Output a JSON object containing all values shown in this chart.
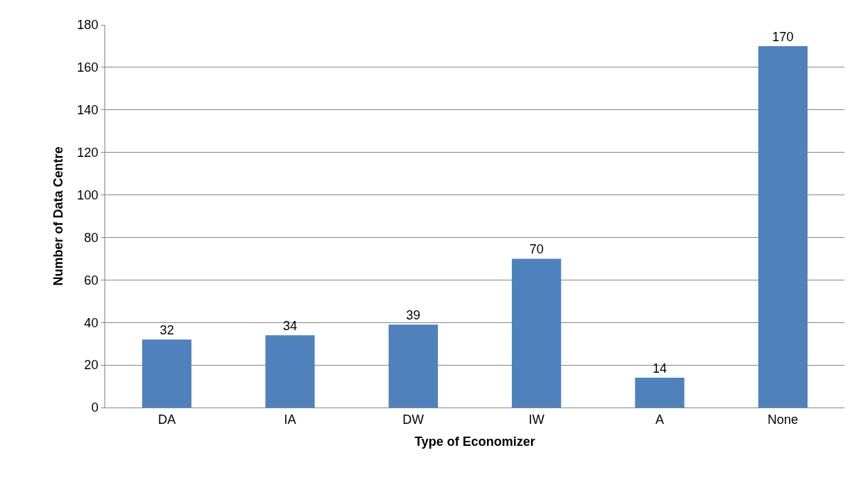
{
  "chart_data": {
    "type": "bar",
    "xlabel": "Type of Economizer",
    "ylabel": "Number of Data Centre",
    "categories": [
      "DA",
      "IA",
      "DW",
      "IW",
      "A",
      "None"
    ],
    "values": [
      32,
      34,
      39,
      70,
      14,
      170
    ],
    "color": "#4f81bd",
    "ylim": [
      0,
      180
    ],
    "yticks": [
      0,
      20,
      40,
      60,
      80,
      100,
      120,
      140,
      160,
      180
    ],
    "grid": "y",
    "data_labels": true
  }
}
